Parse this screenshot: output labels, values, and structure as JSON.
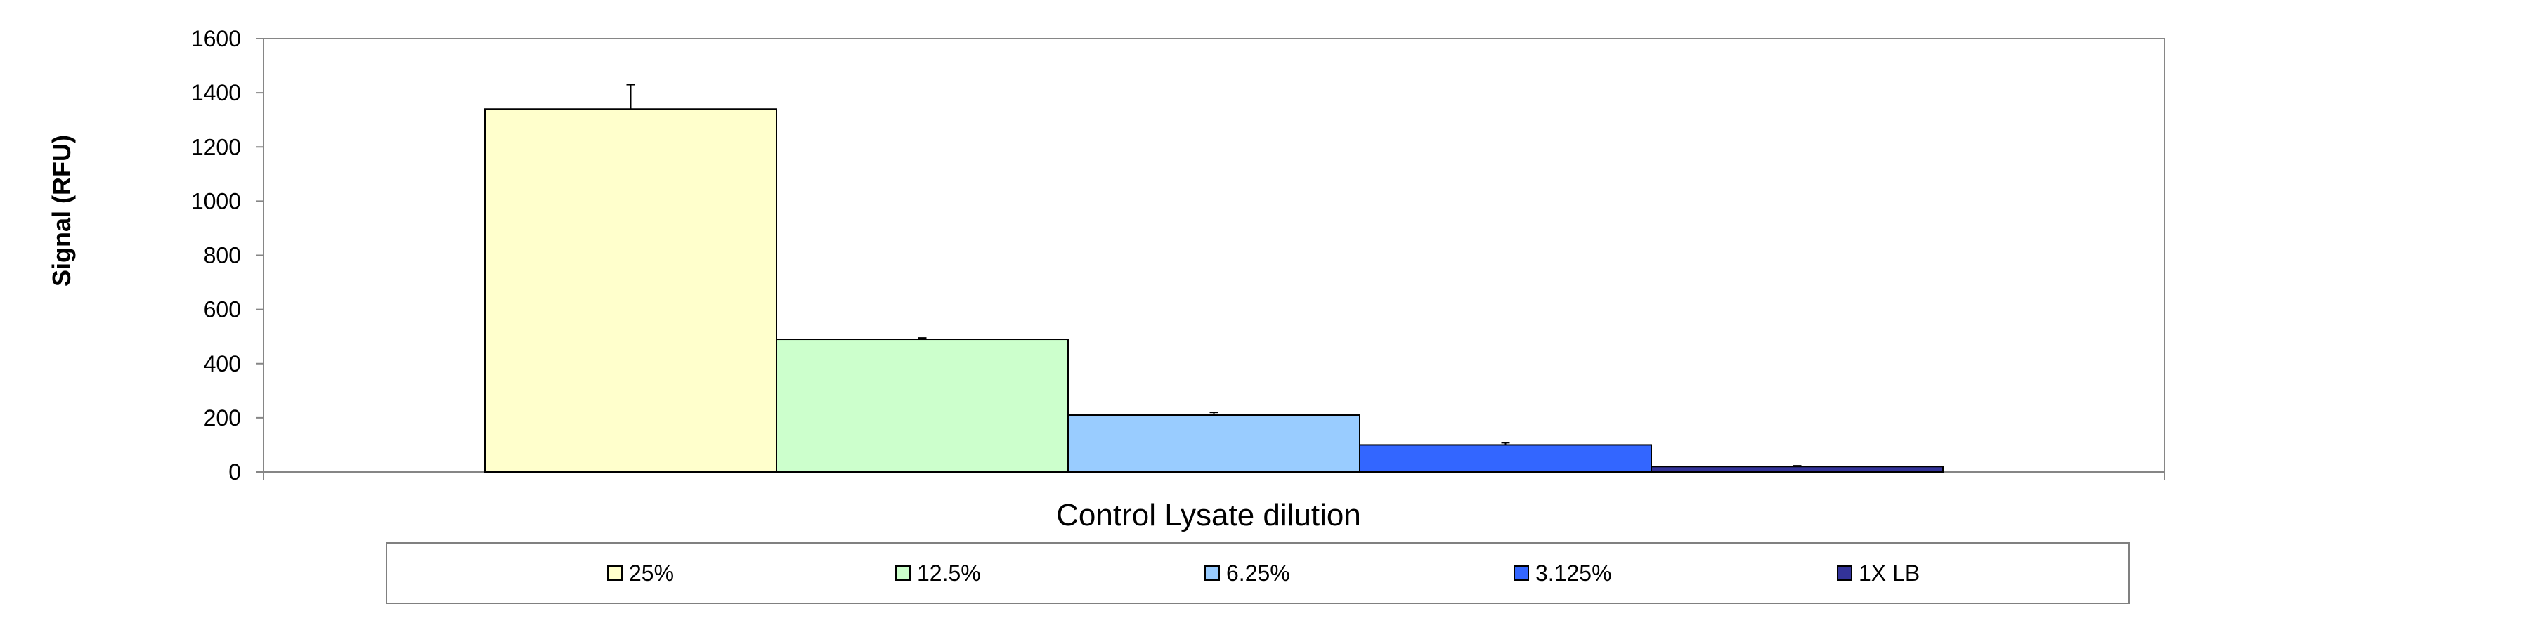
{
  "chart_data": {
    "type": "bar",
    "xlabel": "Control Lysate dilution",
    "ylabel": "Signal (RFU)",
    "ylim": [
      0,
      1600
    ],
    "yticks": [
      0,
      200,
      400,
      600,
      800,
      1000,
      1200,
      1400,
      1600
    ],
    "grid": false,
    "legend_position": "bottom",
    "series": [
      {
        "name": "25%",
        "value": 1340,
        "error": 90,
        "color": "#FFFFCC"
      },
      {
        "name": "12.5%",
        "value": 490,
        "error": 5,
        "color": "#CCFFCC"
      },
      {
        "name": "6.25%",
        "value": 210,
        "error": 10,
        "color": "#99CCFF"
      },
      {
        "name": "3.125%",
        "value": 100,
        "error": 8,
        "color": "#3366FF"
      },
      {
        "name": "1X LB",
        "value": 20,
        "error": 3,
        "color": "#333399"
      }
    ]
  }
}
